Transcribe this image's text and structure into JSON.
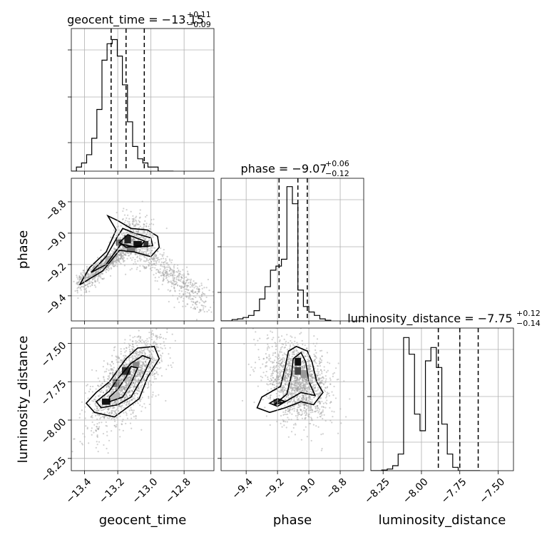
{
  "chart_data": {
    "type": "corner",
    "parameters": [
      {
        "key": "geocent_time",
        "label": "geocent_time",
        "range": [
          -13.48,
          -12.62
        ],
        "ticks": [
          -13.4,
          -13.2,
          -13.0,
          -12.8
        ],
        "tick_labels": [
          "−13.4",
          "−13.2",
          "−13.0",
          "−12.8"
        ]
      },
      {
        "key": "phase",
        "label": "phase",
        "range": [
          -9.56,
          -8.65
        ],
        "ticks": [
          -9.4,
          -9.2,
          -9.0,
          -8.8
        ],
        "tick_labels": [
          "−9.4",
          "−9.2",
          "−9.0",
          "−8.8"
        ]
      },
      {
        "key": "luminosity_distance",
        "label": "luminosity_distance",
        "range": [
          -8.33,
          -7.4
        ],
        "ticks": [
          -8.25,
          -8.0,
          -7.75,
          -7.5
        ],
        "tick_labels": [
          "−8.25",
          "−8.00",
          "−7.75",
          "−7.50"
        ]
      }
    ],
    "titles": [
      {
        "text": "geocent_time = −13.15",
        "plus": "+0.11",
        "minus": "−0.09"
      },
      {
        "text": "phase = −9.07",
        "plus": "+0.06",
        "minus": "−0.12"
      },
      {
        "text": "luminosity_distance = −7.75",
        "plus": "+0.12",
        "minus": "−0.14"
      }
    ],
    "histograms": [
      {
        "bins_start": -13.48,
        "bin_width": 0.0308,
        "counts": [
          0,
          1,
          2,
          4,
          8,
          15,
          27,
          31,
          32,
          28,
          21,
          12,
          6,
          3,
          2,
          1,
          1,
          0,
          0,
          0
        ],
        "quantiles": [
          -13.24,
          -13.15,
          -13.04
        ],
        "ymax": 34
      },
      {
        "bins_start": -9.56,
        "bin_width": 0.035,
        "counts": [
          0,
          0,
          0.2,
          0.3,
          0.5,
          0.8,
          1.5,
          3.2,
          5.0,
          7.4,
          8.0,
          9.0,
          19.6,
          17.1,
          4.5,
          2.1,
          1.3,
          0.8,
          0.3,
          0.1
        ],
        "quantiles": [
          -9.19,
          -9.07,
          -9.01
        ],
        "ymax": 20.4
      },
      {
        "bins_start": -8.33,
        "bin_width": 0.0356,
        "counts": [
          0,
          0,
          0.2,
          0.5,
          1.5,
          5,
          40,
          35,
          17,
          12,
          33,
          37,
          31,
          14,
          5,
          1,
          0,
          0,
          0,
          0
        ],
        "quantiles": [
          -7.89,
          -7.75,
          -7.63
        ],
        "ymax": 42
      }
    ],
    "scatter_2d": [
      {
        "x": "geocent_time",
        "y": "phase",
        "trend": "inverted-v: ridge rising from (-13.43,-9.33) to peak near (-13.12,-9.05), then falling to (-12.65,-9.46)",
        "peak": [
          -13.08,
          -9.07
        ]
      },
      {
        "x": "geocent_time",
        "y": "luminosity_distance",
        "trend": "positive correlation",
        "peak": [
          -13.27,
          -7.88
        ]
      },
      {
        "x": "phase",
        "y": "luminosity_distance",
        "trend": "clump with mode",
        "peak": [
          -9.07,
          -7.64
        ]
      }
    ]
  }
}
